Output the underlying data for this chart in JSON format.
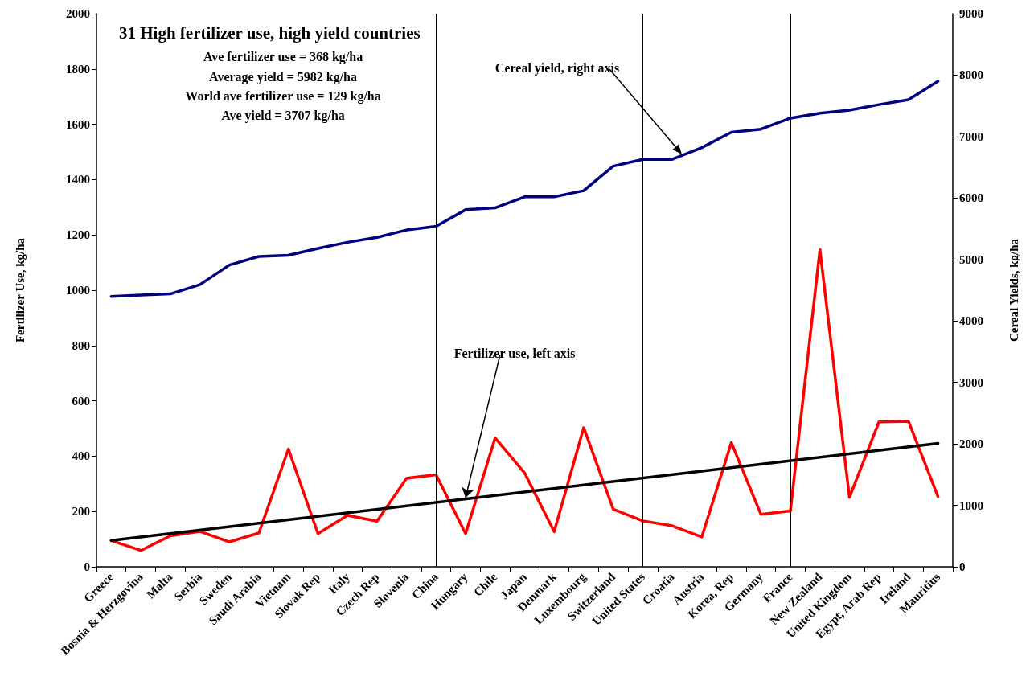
{
  "chart_data": {
    "type": "line",
    "title": "31 High fertilizer use, high yield countries",
    "annotations": [
      "Ave fertilizer use = 368 kg/ha",
      "Average yield = 5982 kg/ha",
      "World ave fertilizer use = 129 kg/ha",
      "Ave yield = 3707 kg/ha",
      "Cereal yield, right axis",
      {
        "text": "Fertilizer use, left axis",
        "x": "Hungary",
        "y": 250
      }
    ],
    "ylabel": "Fertilizer Use, kg/ha",
    "y2label": "Cereal Yields, kg/ha",
    "categories": [
      "Greece",
      "Bosnia & Herzgovina",
      "Malta",
      "Serbia",
      "Sweden",
      "Saudi Arabia",
      "Vietnam",
      "Slovak Rep",
      "Italy",
      "Czech Rep",
      "Slovenia",
      "China",
      "Hungary",
      "Chile",
      "Japan",
      "Denmark",
      "Luxembourg",
      "Switzerland",
      "United States",
      "Croatia",
      "Austria",
      "Korea, Rep",
      "Germany",
      "France",
      "New Zealand",
      "United Kingdom",
      "Egypt, Arab Rep",
      "Ireland",
      "Mauritius"
    ],
    "series": [
      {
        "color": "#ff0000",
        "values": [
          95,
          59,
          112,
          128,
          90,
          122,
          426,
          120,
          186,
          165,
          320,
          333,
          120,
          466,
          339,
          127,
          503,
          208,
          166,
          148,
          108,
          449,
          190,
          202,
          1147,
          251,
          524,
          526,
          253
        ]
      },
      {
        "color": "#000080",
        "axis": "y2",
        "values": [
          4400,
          4420,
          4440,
          4590,
          4910,
          5050,
          5070,
          5180,
          5280,
          5360,
          5480,
          5540,
          5810,
          5840,
          6020,
          6020,
          6120,
          6520,
          6630,
          6630,
          6820,
          7070,
          7120,
          7300,
          7380,
          7430,
          7520,
          7600,
          7900
        ]
      },
      {
        "color": "#000000",
        "values": [
          95,
          null,
          null,
          null,
          null,
          null,
          null,
          null,
          null,
          null,
          null,
          null,
          null,
          null,
          null,
          null,
          null,
          null,
          null,
          null,
          null,
          null,
          null,
          null,
          null,
          null,
          null,
          null,
          446
        ]
      }
    ],
    "ylim": [
      0,
      2000
    ],
    "yticks": [
      0,
      200,
      400,
      600,
      800,
      1000,
      1200,
      1400,
      1600,
      1800,
      2000
    ],
    "y2lim": [
      0,
      9000
    ],
    "y2ticks": [
      0,
      1000,
      2000,
      3000,
      4000,
      5000,
      6000,
      7000,
      8000,
      9000
    ],
    "ref_lines": [
      {
        "axis": "x",
        "value": "China",
        "color": "#000000"
      },
      {
        "axis": "x",
        "value": "United States",
        "color": "#000000"
      },
      {
        "axis": "x",
        "value": "France",
        "color": "#000000"
      }
    ],
    "grid": false,
    "marker": "none",
    "line_style": "solid"
  }
}
